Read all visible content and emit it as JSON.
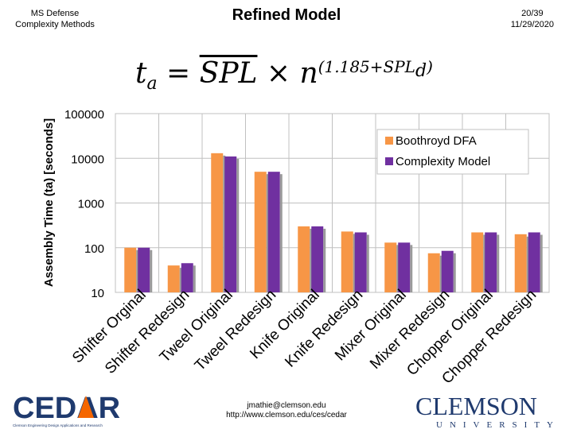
{
  "header": {
    "left_line1": "MS Defense",
    "left_line2": "Complexity Methods",
    "title": "Refined Model",
    "slide_number": "20/39",
    "date": "11/29/2020"
  },
  "formula": {
    "lhs": "t",
    "lhs_sub": "a",
    "eq": " = ",
    "spl": "SPL",
    "times": " × n",
    "exponent": "(1.185+SPL",
    "exponent_sub": "d",
    "exponent_close": ")"
  },
  "chart_data": {
    "type": "bar",
    "yscale": "log",
    "ylim": [
      10,
      100000
    ],
    "yticks": [
      10,
      100,
      1000,
      10000,
      100000
    ],
    "ytick_labels": [
      "10",
      "100",
      "1000",
      "10000",
      "100000"
    ],
    "ylabel": "Assembly Time (ta) [seconds]",
    "xlabel": "",
    "legend_position": "top-right",
    "grid": true,
    "categories": [
      "Shifter Orginal",
      "Shifter Redesign",
      "Tweel Original",
      "Tweel Redesign",
      "Knife Original",
      "Knife Redesign",
      "Mixer Original",
      "Mixer Redesign",
      "Chopper Original",
      "Chopper Redesign"
    ],
    "series": [
      {
        "name": "Boothroyd DFA",
        "color": "#f79646",
        "values": [
          100,
          40,
          13000,
          5000,
          300,
          230,
          130,
          75,
          220,
          200
        ]
      },
      {
        "name": "Complexity Model",
        "color": "#7030a0",
        "values": [
          100,
          45,
          11000,
          5000,
          300,
          220,
          130,
          85,
          220,
          220
        ]
      }
    ]
  },
  "footer": {
    "email": "jmathie@clemson.edu",
    "url": "http://www.clemson.edu/ces/cedar",
    "cedar_logo_text": "CEDAR",
    "cedar_tagline": "Clemson Engineering Design Applications and Research",
    "clemson_logo_text": "CLEMSON",
    "clemson_sub": "UNIVERSITY"
  },
  "colors": {
    "grid": "#c0c0c0",
    "axis": "#808080",
    "cedar_blue": "#1f3a6e",
    "clemson_blue": "#1f3a6e",
    "cedar_orange": "#f56600"
  }
}
